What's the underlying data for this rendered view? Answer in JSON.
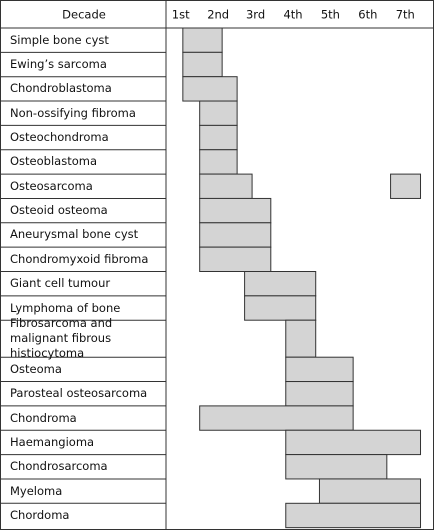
{
  "chart_data": {
    "type": "range",
    "x_axis_label": "Decade",
    "xlim": [
      0,
      70
    ],
    "xticks": [
      {
        "value": 5,
        "label": "1st"
      },
      {
        "value": 15,
        "label": "2nd"
      },
      {
        "value": 25,
        "label": "3rd"
      },
      {
        "value": 35,
        "label": "4th"
      },
      {
        "value": 45,
        "label": "5th"
      },
      {
        "value": 55,
        "label": "6th"
      },
      {
        "value": 65,
        "label": "7th"
      }
    ],
    "color": "#d4d4d4",
    "categories": [
      "Simple bone cyst",
      "Ewing’s sarcoma",
      "Chondroblastoma",
      "Non-ossifying fibroma",
      "Osteochondroma",
      "Osteoblastoma",
      "Osteosarcoma",
      "Osteoid osteoma",
      "Aneurysmal bone cyst",
      "Chondromyxoid fibroma",
      "Giant cell tumour",
      "Lymphoma of bone",
      "Fibrosarcoma and malignant fibrous histiocytoma",
      "Osteoma",
      "Parosteal osteosarcoma",
      "Chondroma",
      "Haemangioma",
      "Chondrosarcoma",
      "Myeloma",
      "Chordoma"
    ],
    "ranges": [
      [
        [
          4.5,
          15
        ]
      ],
      [
        [
          4.5,
          15
        ]
      ],
      [
        [
          4.5,
          19
        ]
      ],
      [
        [
          9,
          19
        ]
      ],
      [
        [
          9,
          19
        ]
      ],
      [
        [
          9,
          19
        ]
      ],
      [
        [
          9,
          23
        ],
        [
          60,
          68
        ]
      ],
      [
        [
          9,
          28
        ]
      ],
      [
        [
          9,
          28
        ]
      ],
      [
        [
          9,
          28
        ]
      ],
      [
        [
          21,
          40
        ]
      ],
      [
        [
          21,
          40
        ]
      ],
      [
        [
          32,
          40
        ]
      ],
      [
        [
          32,
          50
        ]
      ],
      [
        [
          32,
          50
        ]
      ],
      [
        [
          9,
          50
        ]
      ],
      [
        [
          32,
          68
        ]
      ],
      [
        [
          32,
          59
        ]
      ],
      [
        [
          41,
          68
        ]
      ],
      [
        [
          32,
          68
        ]
      ]
    ]
  }
}
